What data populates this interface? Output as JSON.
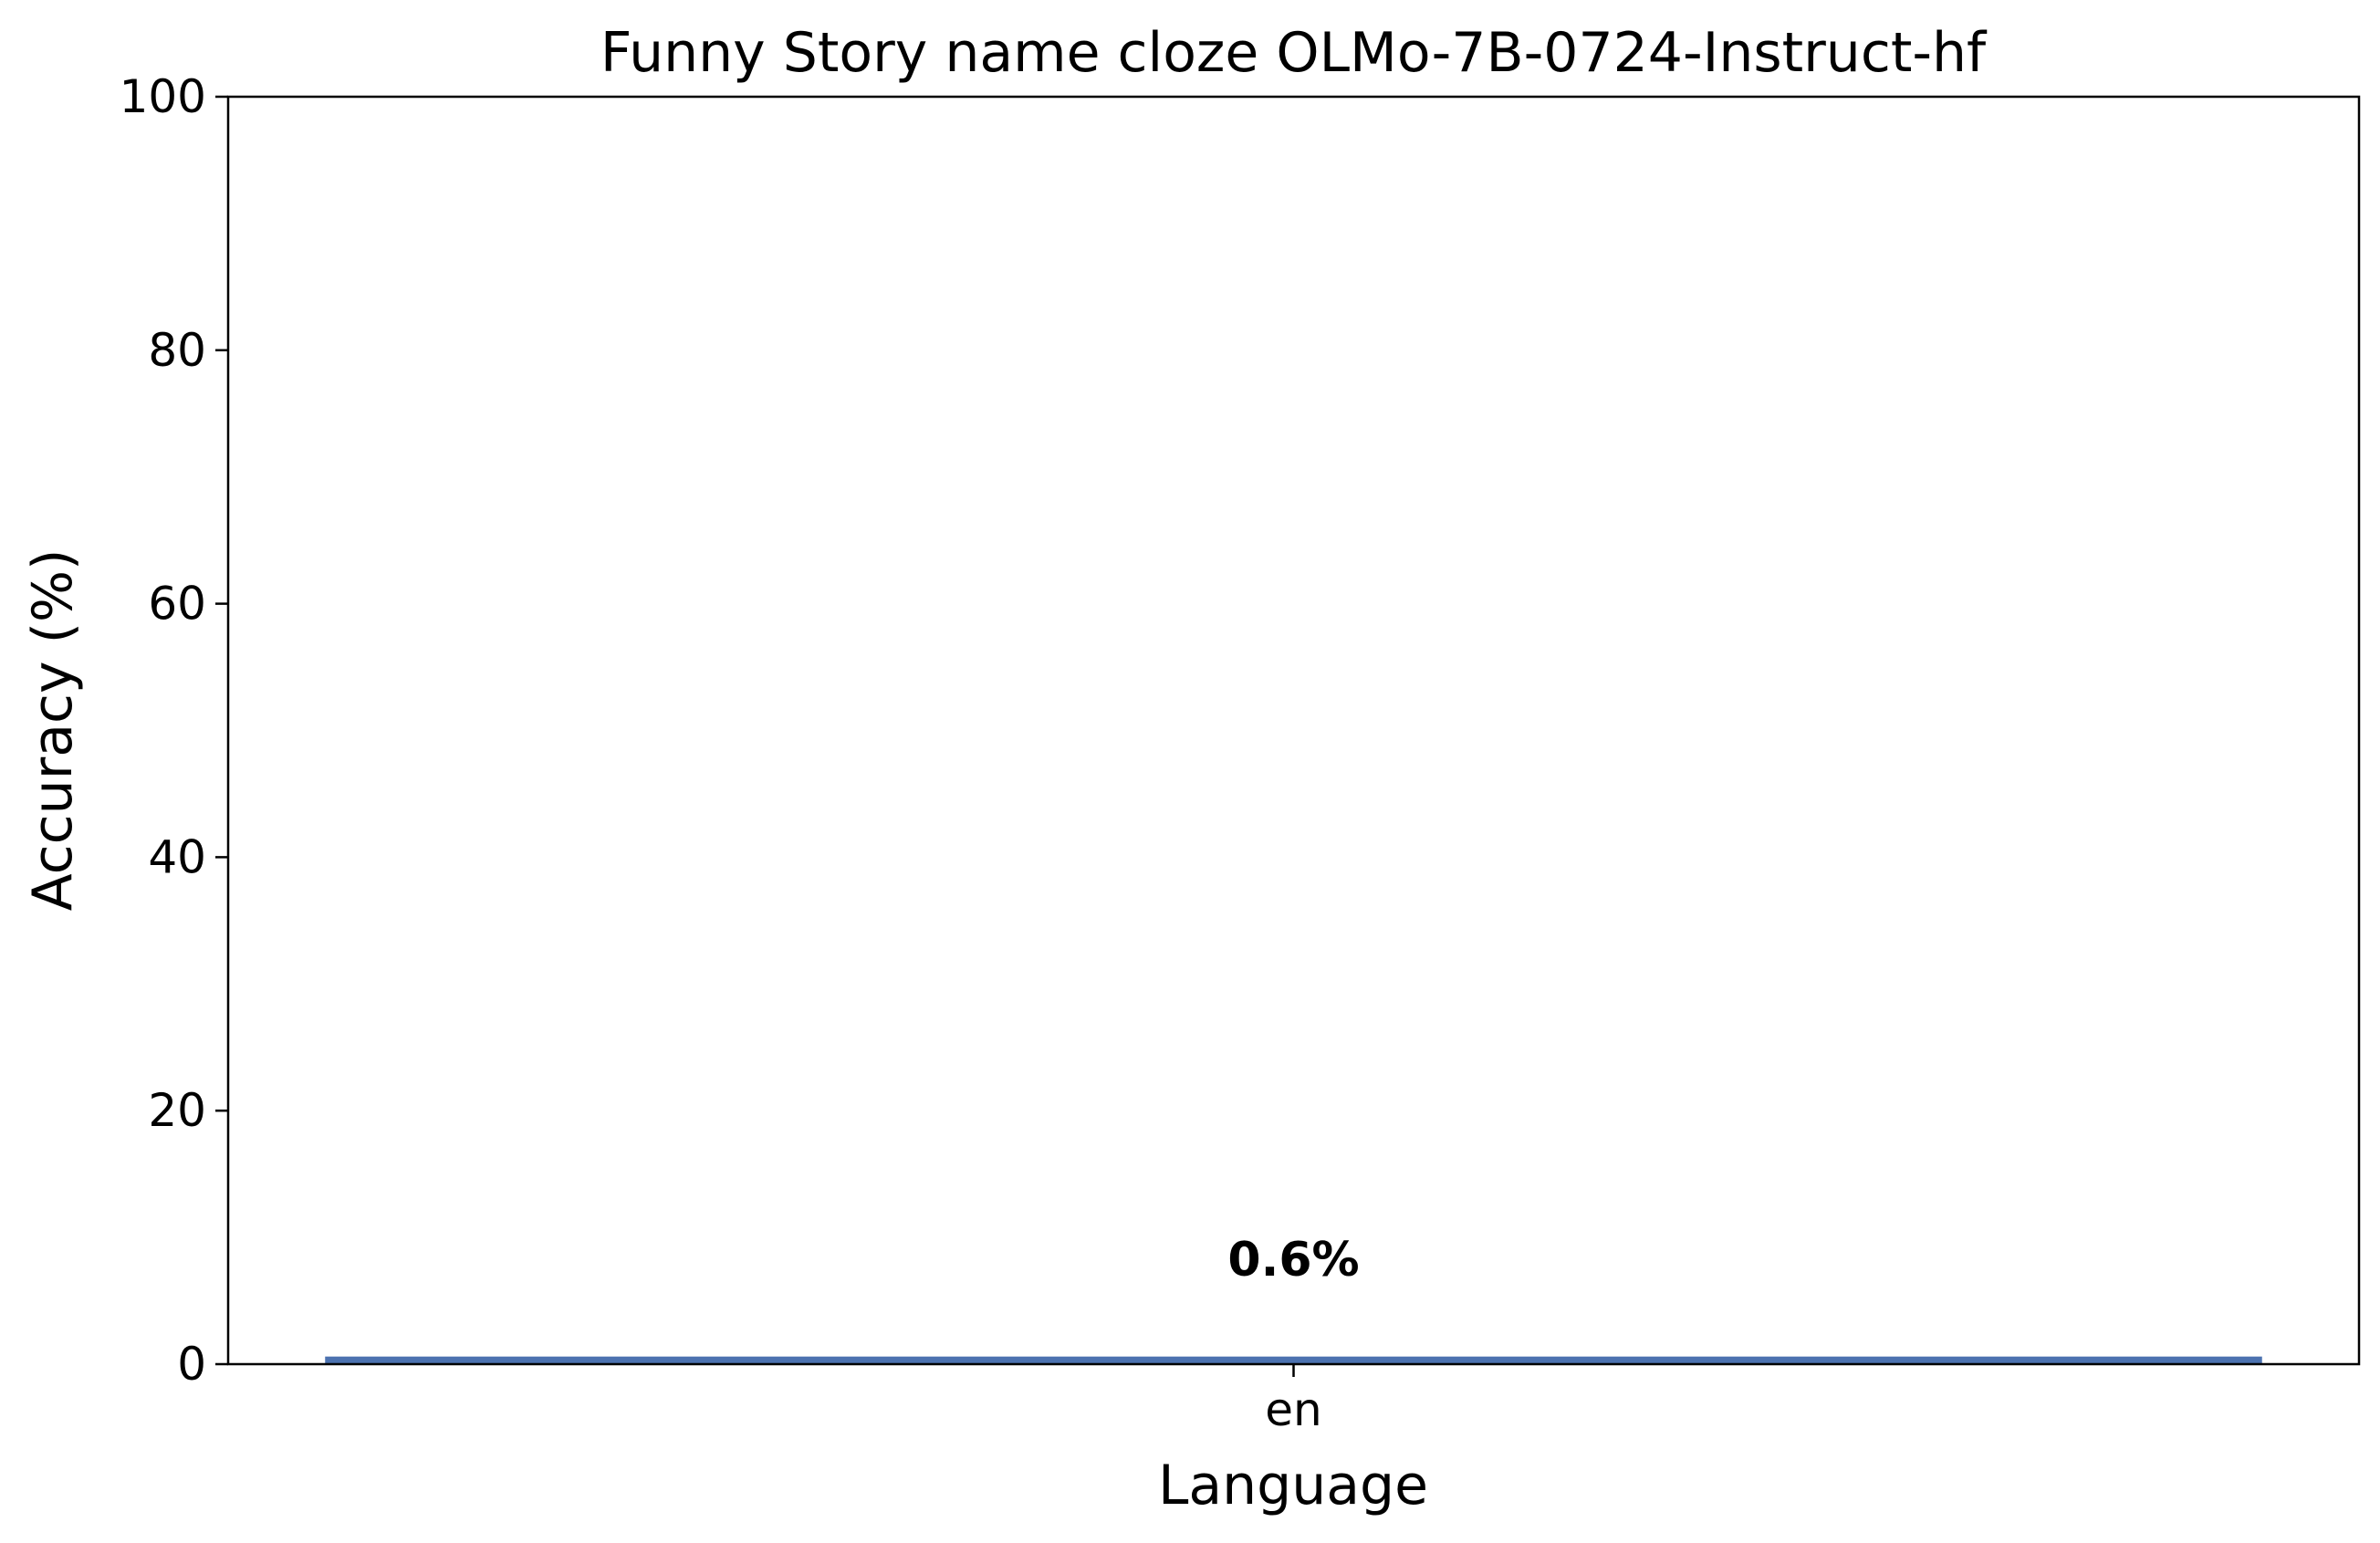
{
  "chart_data": {
    "type": "bar",
    "title": "Funny Story name cloze OLMo-7B-0724-Instruct-hf",
    "xlabel": "Language",
    "ylabel": "Accuracy (%)",
    "categories": [
      "en"
    ],
    "values": [
      0.6
    ],
    "data_labels": [
      "0.6%"
    ],
    "ylim": [
      0,
      100
    ],
    "yticks": [
      0,
      20,
      40,
      60,
      80,
      100
    ],
    "ytick_labels": [
      "0",
      "20",
      "40",
      "60",
      "80",
      "100"
    ],
    "grid": false,
    "legend": "none",
    "bar_color": "#4c72b0"
  }
}
